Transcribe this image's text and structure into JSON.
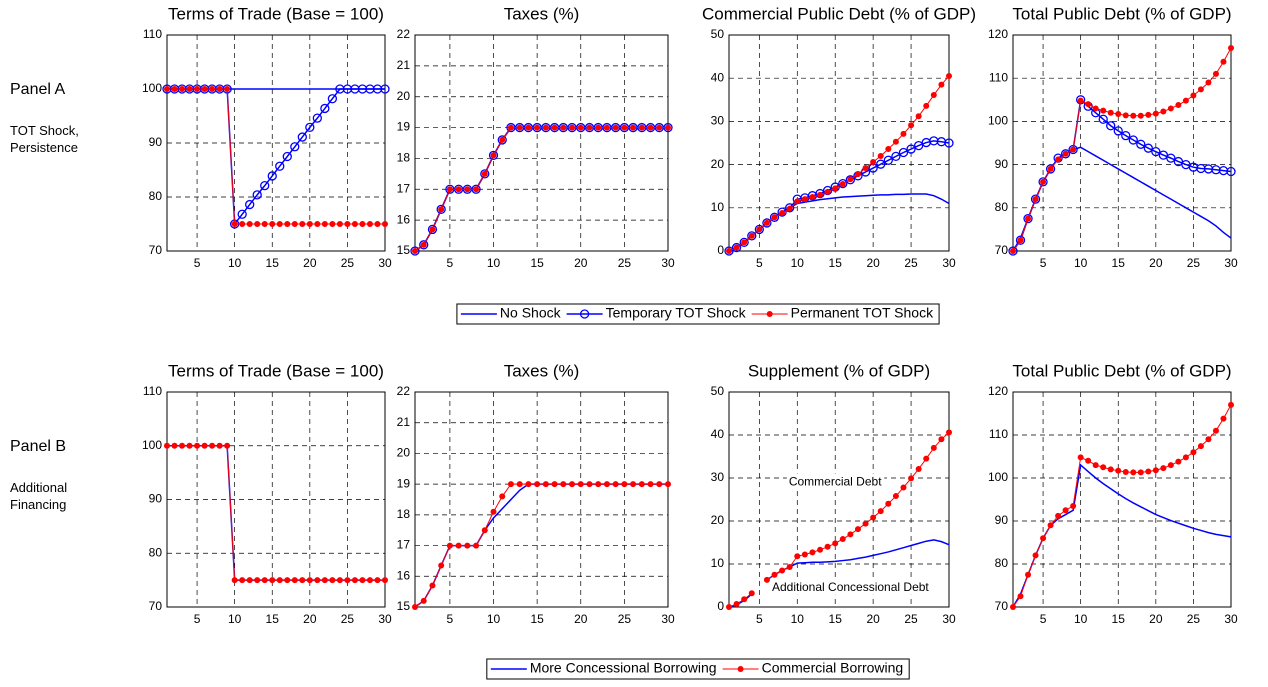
{
  "panels": [
    {
      "label": "Panel A",
      "note": "TOT Shock, Persistence"
    },
    {
      "label": "Panel B",
      "note": "Additional Financing"
    }
  ],
  "chart_data": [
    {
      "type": "line",
      "title": "Terms of Trade (Base = 100)",
      "x": [
        1,
        2,
        3,
        4,
        5,
        6,
        7,
        8,
        9,
        10,
        11,
        12,
        13,
        14,
        15,
        16,
        17,
        18,
        19,
        20,
        21,
        22,
        23,
        24,
        25,
        26,
        27,
        28,
        29,
        30
      ],
      "xlim": [
        1,
        30
      ],
      "xticks": [
        5,
        10,
        15,
        20,
        25,
        30
      ],
      "ylim": [
        70,
        110
      ],
      "yticks": [
        70,
        80,
        90,
        100,
        110
      ],
      "grid": true,
      "series": [
        {
          "name": "No Shock",
          "color": "#0000ff",
          "marker": "none",
          "values": [
            100,
            100,
            100,
            100,
            100,
            100,
            100,
            100,
            100,
            100,
            100,
            100,
            100,
            100,
            100,
            100,
            100,
            100,
            100,
            100,
            100,
            100,
            100,
            100,
            100,
            100,
            100,
            100,
            100,
            100
          ]
        },
        {
          "name": "Temporary TOT Shock",
          "color": "#0000ff",
          "marker": "circle",
          "values": [
            100,
            100,
            100,
            100,
            100,
            100,
            100,
            100,
            100,
            75,
            76.8,
            78.6,
            80.4,
            82.1,
            83.9,
            85.7,
            87.5,
            89.3,
            91.1,
            92.9,
            94.6,
            96.4,
            98.2,
            100,
            100,
            100,
            100,
            100,
            100,
            100
          ]
        },
        {
          "name": "Permanent TOT Shock",
          "color": "#ff0000",
          "marker": "dot",
          "values": [
            100,
            100,
            100,
            100,
            100,
            100,
            100,
            100,
            100,
            75,
            75,
            75,
            75,
            75,
            75,
            75,
            75,
            75,
            75,
            75,
            75,
            75,
            75,
            75,
            75,
            75,
            75,
            75,
            75,
            75
          ]
        }
      ]
    },
    {
      "type": "line",
      "title": "Taxes (%)",
      "x": [
        1,
        2,
        3,
        4,
        5,
        6,
        7,
        8,
        9,
        10,
        11,
        12,
        13,
        14,
        15,
        16,
        17,
        18,
        19,
        20,
        21,
        22,
        23,
        24,
        25,
        26,
        27,
        28,
        29,
        30
      ],
      "xlim": [
        1,
        30
      ],
      "xticks": [
        5,
        10,
        15,
        20,
        25,
        30
      ],
      "ylim": [
        15,
        22
      ],
      "yticks": [
        15,
        16,
        17,
        18,
        19,
        20,
        21,
        22
      ],
      "grid": true,
      "series": [
        {
          "color": "#0000ff",
          "marker": "none",
          "values": [
            15,
            15.2,
            15.7,
            16.35,
            17,
            17,
            17,
            17,
            17.5,
            18.1,
            18.6,
            19,
            19,
            19,
            19,
            19,
            19,
            19,
            19,
            19,
            19,
            19,
            19,
            19,
            19,
            19,
            19,
            19,
            19,
            19
          ]
        },
        {
          "color": "#0000ff",
          "marker": "circle",
          "values": [
            15,
            15.2,
            15.7,
            16.35,
            17,
            17,
            17,
            17,
            17.5,
            18.1,
            18.6,
            19,
            19,
            19,
            19,
            19,
            19,
            19,
            19,
            19,
            19,
            19,
            19,
            19,
            19,
            19,
            19,
            19,
            19,
            19
          ]
        },
        {
          "color": "#ff0000",
          "marker": "dot",
          "values": [
            15,
            15.2,
            15.7,
            16.35,
            17,
            17,
            17,
            17,
            17.5,
            18.1,
            18.6,
            19,
            19,
            19,
            19,
            19,
            19,
            19,
            19,
            19,
            19,
            19,
            19,
            19,
            19,
            19,
            19,
            19,
            19,
            19
          ]
        }
      ]
    },
    {
      "type": "line",
      "title": "Commercial Public Debt (% of GDP)",
      "x": [
        1,
        2,
        3,
        4,
        5,
        6,
        7,
        8,
        9,
        10,
        11,
        12,
        13,
        14,
        15,
        16,
        17,
        18,
        19,
        20,
        21,
        22,
        23,
        24,
        25,
        26,
        27,
        28,
        29,
        30
      ],
      "xlim": [
        1,
        30
      ],
      "xticks": [
        5,
        10,
        15,
        20,
        25,
        30
      ],
      "ylim": [
        0,
        50
      ],
      "yticks": [
        0,
        10,
        20,
        30,
        40,
        50
      ],
      "grid": true,
      "series": [
        {
          "color": "#0000ff",
          "marker": "none",
          "values": [
            0,
            0.7,
            2,
            3.5,
            5,
            6.5,
            7.8,
            9,
            10,
            11,
            11.3,
            11.6,
            11.9,
            12.1,
            12.3,
            12.5,
            12.6,
            12.7,
            12.8,
            12.9,
            13,
            13,
            13.1,
            13.1,
            13.2,
            13.2,
            13.2,
            12.8,
            12,
            11
          ]
        },
        {
          "color": "#0000ff",
          "marker": "circle",
          "values": [
            0,
            0.8,
            2,
            3.5,
            5,
            6.5,
            7.8,
            9,
            10,
            12,
            12.3,
            12.8,
            13.3,
            14,
            14.8,
            15.6,
            16.5,
            17.4,
            18.3,
            19.2,
            20.1,
            21,
            21.9,
            22.8,
            23.6,
            24.4,
            25.1,
            25.5,
            25.3,
            25
          ]
        },
        {
          "color": "#ff0000",
          "marker": "dot",
          "values": [
            0,
            0.8,
            2,
            3.5,
            5,
            6.5,
            7.8,
            8.8,
            9.8,
            11.5,
            12,
            12.5,
            13,
            13.7,
            14.5,
            15.5,
            16.6,
            17.8,
            19.2,
            20.6,
            22,
            23.6,
            25.3,
            27.1,
            29.1,
            31.2,
            33.6,
            36.1,
            38.5,
            40.5
          ]
        }
      ]
    },
    {
      "type": "line",
      "title": "Total Public Debt (% of GDP)",
      "x": [
        1,
        2,
        3,
        4,
        5,
        6,
        7,
        8,
        9,
        10,
        11,
        12,
        13,
        14,
        15,
        16,
        17,
        18,
        19,
        20,
        21,
        22,
        23,
        24,
        25,
        26,
        27,
        28,
        29,
        30
      ],
      "xlim": [
        1,
        30
      ],
      "xticks": [
        5,
        10,
        15,
        20,
        25,
        30
      ],
      "ylim": [
        70,
        120
      ],
      "yticks": [
        70,
        80,
        90,
        100,
        110,
        120
      ],
      "grid": true,
      "series": [
        {
          "color": "#0000ff",
          "marker": "none",
          "values": [
            70,
            73,
            77.5,
            82,
            86,
            89,
            91.5,
            92.5,
            93.5,
            94,
            93,
            92,
            91,
            90,
            89,
            88,
            87,
            86,
            85,
            84,
            83,
            82,
            81,
            80,
            79,
            78,
            77,
            75.8,
            74.3,
            73
          ]
        },
        {
          "color": "#0000ff",
          "marker": "circle",
          "values": [
            70,
            72.5,
            77.5,
            82,
            86,
            89,
            91.5,
            92.5,
            93.5,
            105,
            103.5,
            102,
            100.5,
            99,
            97.8,
            96.7,
            95.7,
            94.7,
            93.8,
            93,
            92.2,
            91.5,
            90.7,
            90,
            89.4,
            89.1,
            89,
            88.8,
            88.6,
            88.4
          ]
        },
        {
          "color": "#ff0000",
          "marker": "dot",
          "values": [
            70,
            72.5,
            77.5,
            82,
            86,
            89,
            91.2,
            92.5,
            93.5,
            104.8,
            104,
            103,
            102.5,
            102,
            101.7,
            101.4,
            101.3,
            101.3,
            101.5,
            101.8,
            102.3,
            103,
            103.8,
            104.8,
            106,
            107.4,
            109,
            111,
            113.8,
            117
          ]
        }
      ]
    },
    {
      "type": "line",
      "title": "Terms of Trade (Base = 100)",
      "x": [
        1,
        2,
        3,
        4,
        5,
        6,
        7,
        8,
        9,
        10,
        11,
        12,
        13,
        14,
        15,
        16,
        17,
        18,
        19,
        20,
        21,
        22,
        23,
        24,
        25,
        26,
        27,
        28,
        29,
        30
      ],
      "xlim": [
        1,
        30
      ],
      "xticks": [
        5,
        10,
        15,
        20,
        25,
        30
      ],
      "ylim": [
        70,
        110
      ],
      "yticks": [
        70,
        80,
        90,
        100,
        110
      ],
      "grid": true,
      "series": [
        {
          "name": "More Concessional Borrowing",
          "color": "#0000ff",
          "marker": "none",
          "values": [
            100,
            100,
            100,
            100,
            100,
            100,
            100,
            100,
            100,
            75,
            75,
            75,
            75,
            75,
            75,
            75,
            75,
            75,
            75,
            75,
            75,
            75,
            75,
            75,
            75,
            75,
            75,
            75,
            75,
            75
          ]
        },
        {
          "name": "Commercial Borrowing",
          "color": "#ff0000",
          "marker": "dot",
          "values": [
            100,
            100,
            100,
            100,
            100,
            100,
            100,
            100,
            100,
            75,
            75,
            75,
            75,
            75,
            75,
            75,
            75,
            75,
            75,
            75,
            75,
            75,
            75,
            75,
            75,
            75,
            75,
            75,
            75,
            75
          ]
        }
      ]
    },
    {
      "type": "line",
      "title": "Taxes (%)",
      "x": [
        1,
        2,
        3,
        4,
        5,
        6,
        7,
        8,
        9,
        10,
        11,
        12,
        13,
        14,
        15,
        16,
        17,
        18,
        19,
        20,
        21,
        22,
        23,
        24,
        25,
        26,
        27,
        28,
        29,
        30
      ],
      "xlim": [
        1,
        30
      ],
      "xticks": [
        5,
        10,
        15,
        20,
        25,
        30
      ],
      "ylim": [
        15,
        22
      ],
      "yticks": [
        15,
        16,
        17,
        18,
        19,
        20,
        21,
        22
      ],
      "grid": true,
      "series": [
        {
          "color": "#0000ff",
          "marker": "none",
          "values": [
            15,
            15.2,
            15.7,
            16.35,
            17,
            17,
            17,
            17,
            17.5,
            17.9,
            18.2,
            18.5,
            18.8,
            19,
            19,
            19,
            19,
            19,
            19,
            19,
            19,
            19,
            19,
            19,
            19,
            19,
            19,
            19,
            19,
            19
          ]
        },
        {
          "color": "#ff0000",
          "marker": "dot",
          "values": [
            15,
            15.2,
            15.7,
            16.35,
            17,
            17,
            17,
            17,
            17.5,
            18.1,
            18.6,
            19,
            19,
            19,
            19,
            19,
            19,
            19,
            19,
            19,
            19,
            19,
            19,
            19,
            19,
            19,
            19,
            19,
            19,
            19
          ]
        }
      ]
    },
    {
      "type": "line",
      "title": "Supplement (% of GDP)",
      "x": [
        1,
        2,
        3,
        4,
        5,
        6,
        7,
        8,
        9,
        10,
        11,
        12,
        13,
        14,
        15,
        16,
        17,
        18,
        19,
        20,
        21,
        22,
        23,
        24,
        25,
        26,
        27,
        28,
        29,
        30
      ],
      "xlim": [
        1,
        30
      ],
      "xticks": [
        5,
        10,
        15,
        20,
        25,
        30
      ],
      "ylim": [
        0,
        50
      ],
      "yticks": [
        0,
        10,
        20,
        30,
        40,
        50
      ],
      "grid": true,
      "annotations": [
        "Commercial Debt",
        "Additional Concessional Debt"
      ],
      "series": [
        {
          "color": "#0000ff",
          "marker": "none",
          "values": [
            0,
            0.5,
            1.5,
            3,
            null,
            6.3,
            7.5,
            8.5,
            9.3,
            10.2,
            10.3,
            10.4,
            10.4,
            10.5,
            10.6,
            10.8,
            11,
            11.3,
            11.6,
            12,
            12.4,
            12.8,
            13.3,
            13.8,
            14.3,
            14.8,
            15.3,
            15.6,
            15.2,
            14.5
          ]
        },
        {
          "color": "#ff0000",
          "marker": "dot",
          "values": [
            0,
            0.7,
            1.8,
            3.2,
            null,
            6.3,
            7.5,
            8.5,
            9.3,
            11.8,
            12.2,
            12.7,
            13.3,
            14,
            14.8,
            15.8,
            16.9,
            18.1,
            19.4,
            20.8,
            22.3,
            24,
            25.8,
            27.8,
            29.9,
            32.1,
            34.5,
            37,
            39,
            40.6
          ]
        }
      ]
    },
    {
      "type": "line",
      "title": "Total Public Debt (% of GDP)",
      "x": [
        1,
        2,
        3,
        4,
        5,
        6,
        7,
        8,
        9,
        10,
        11,
        12,
        13,
        14,
        15,
        16,
        17,
        18,
        19,
        20,
        21,
        22,
        23,
        24,
        25,
        26,
        27,
        28,
        29,
        30
      ],
      "xlim": [
        1,
        30
      ],
      "xticks": [
        5,
        10,
        15,
        20,
        25,
        30
      ],
      "ylim": [
        70,
        120
      ],
      "yticks": [
        70,
        80,
        90,
        100,
        110,
        120
      ],
      "grid": true,
      "series": [
        {
          "color": "#0000ff",
          "marker": "none",
          "values": [
            70,
            73,
            77.5,
            82,
            86,
            89,
            90.5,
            91.5,
            92.5,
            103,
            101.5,
            100,
            98.7,
            97.5,
            96.3,
            95.2,
            94.2,
            93.3,
            92.4,
            91.5,
            90.8,
            90.1,
            89.5,
            88.9,
            88.3,
            87.8,
            87.3,
            86.9,
            86.6,
            86.3
          ]
        },
        {
          "color": "#ff0000",
          "marker": "dot",
          "values": [
            70,
            72.5,
            77.5,
            82,
            86,
            89,
            91.2,
            92.5,
            93.5,
            104.8,
            104,
            103,
            102.5,
            102,
            101.7,
            101.4,
            101.3,
            101.3,
            101.5,
            101.8,
            102.3,
            103,
            103.8,
            104.8,
            106,
            107.4,
            109,
            111,
            113.8,
            117
          ]
        }
      ]
    }
  ]
}
